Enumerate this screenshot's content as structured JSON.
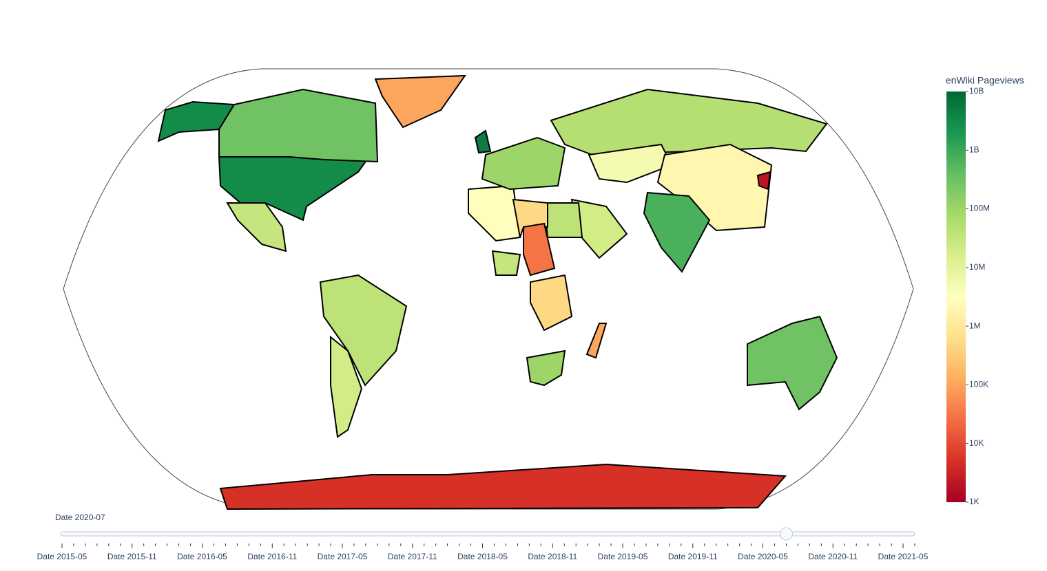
{
  "chart_data": {
    "type": "choropleth",
    "colorbar_title": "enWiki Pageviews",
    "log_scale": true,
    "zlim": [
      1000,
      10000000000
    ],
    "zticks": [
      {
        "value": 1000,
        "label": "1K"
      },
      {
        "value": 10000,
        "label": "10K"
      },
      {
        "value": 100000,
        "label": "100K"
      },
      {
        "value": 1000000,
        "label": "1M"
      },
      {
        "value": 10000000,
        "label": "10M"
      },
      {
        "value": 100000000,
        "label": "100M"
      },
      {
        "value": 1000000000,
        "label": "1B"
      },
      {
        "value": 10000000000,
        "label": "10B"
      }
    ],
    "colorscale": [
      "#a50026",
      "#d73027",
      "#f46d43",
      "#fdae61",
      "#fee08b",
      "#ffffbf",
      "#d9ef8b",
      "#a6d96a",
      "#66bd63",
      "#1a9850",
      "#006837"
    ],
    "values": [
      3000000000,
      3000000000,
      300000000,
      100000,
      30000000,
      40000000,
      20000000,
      50000000,
      5000000,
      2000000,
      700000000,
      20000000,
      40000000,
      3000000,
      500000,
      30000,
      30000000,
      500000,
      100000000,
      100000,
      300000000,
      2000,
      5000000000,
      5000,
      100000000
    ],
    "slider": {
      "current_label": "Date 2020-07",
      "active": 62,
      "steps": [
        "Date 2015-05",
        null,
        null,
        null,
        null,
        null,
        "Date 2015-11",
        null,
        null,
        null,
        null,
        null,
        "Date 2016-05",
        null,
        null,
        null,
        null,
        null,
        "Date 2016-11",
        null,
        null,
        null,
        null,
        null,
        "Date 2017-05",
        null,
        null,
        null,
        null,
        null,
        "Date 2017-11",
        null,
        null,
        null,
        null,
        null,
        "Date 2018-05",
        null,
        null,
        null,
        null,
        null,
        "Date 2018-11",
        null,
        null,
        null,
        null,
        null,
        "Date 2019-05",
        null,
        null,
        null,
        null,
        null,
        "Date 2019-11",
        null,
        null,
        null,
        null,
        null,
        "Date 2020-05",
        null,
        null,
        null,
        null,
        null,
        "Date 2020-11",
        null,
        null,
        null,
        null,
        null,
        "Date 2021-05",
        null
      ]
    }
  }
}
